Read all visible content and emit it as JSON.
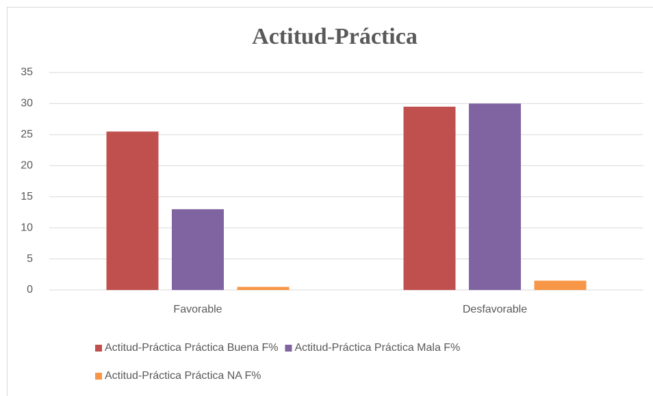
{
  "chart_data": {
    "type": "bar",
    "title": "Actitud-Práctica",
    "categories": [
      "Favorable",
      "Desfavorable"
    ],
    "series": [
      {
        "name": "Actitud-Práctica Práctica Buena F%",
        "color": "#c0504d",
        "values": [
          25.5,
          29.5
        ]
      },
      {
        "name": "Actitud-Práctica Práctica Mala F%",
        "color": "#8064a2",
        "values": [
          13,
          30
        ]
      },
      {
        "name": "Actitud-Práctica Práctica NA F%",
        "color": "#f79646",
        "values": [
          0.5,
          1.5
        ]
      }
    ],
    "ylim": [
      0,
      35
    ],
    "yticks": [
      0,
      5,
      10,
      15,
      20,
      25,
      30,
      35
    ],
    "grid": true,
    "legend": "bottom"
  }
}
